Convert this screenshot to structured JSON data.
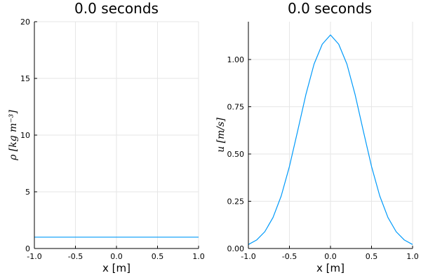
{
  "chart_data": [
    {
      "type": "line",
      "title": "0.0 seconds",
      "xlabel": "x [m]",
      "ylabel": "ρ [kg m⁻³]",
      "xlim": [
        -1.0,
        1.0
      ],
      "ylim": [
        0,
        20
      ],
      "xticks": [
        "-1.0",
        "-0.5",
        "0.0",
        "0.5",
        "1.0"
      ],
      "yticks": [
        "0",
        "5",
        "10",
        "15",
        "20"
      ],
      "grid": true,
      "series": [
        {
          "color": "#009AFA",
          "x": [
            -1.0,
            -0.5,
            0.0,
            0.5,
            1.0
          ],
          "y": [
            1.0,
            1.0,
            1.0,
            1.0,
            1.0
          ]
        }
      ]
    },
    {
      "type": "line",
      "title": "0.0 seconds",
      "xlabel": "x [m]",
      "ylabel": "u [m/s]",
      "xlim": [
        -1.0,
        1.0
      ],
      "ylim": [
        0.0,
        1.2
      ],
      "xticks": [
        "-1.0",
        "-0.5",
        "0.0",
        "0.5",
        "1.0"
      ],
      "yticks": [
        "0.00",
        "0.25",
        "0.50",
        "0.75",
        "1.00"
      ],
      "grid": true,
      "series": [
        {
          "color": "#009AFA",
          "x": [
            -1.0,
            -0.9,
            -0.8,
            -0.7,
            -0.6,
            -0.5,
            -0.4,
            -0.3,
            -0.2,
            -0.1,
            0.0,
            0.1,
            0.2,
            0.3,
            0.4,
            0.5,
            0.6,
            0.7,
            0.8,
            0.9,
            1.0
          ],
          "y": [
            0.021,
            0.045,
            0.089,
            0.164,
            0.278,
            0.434,
            0.622,
            0.814,
            0.976,
            1.081,
            1.13,
            1.081,
            0.976,
            0.814,
            0.622,
            0.434,
            0.278,
            0.164,
            0.089,
            0.045,
            0.021
          ]
        }
      ]
    }
  ]
}
